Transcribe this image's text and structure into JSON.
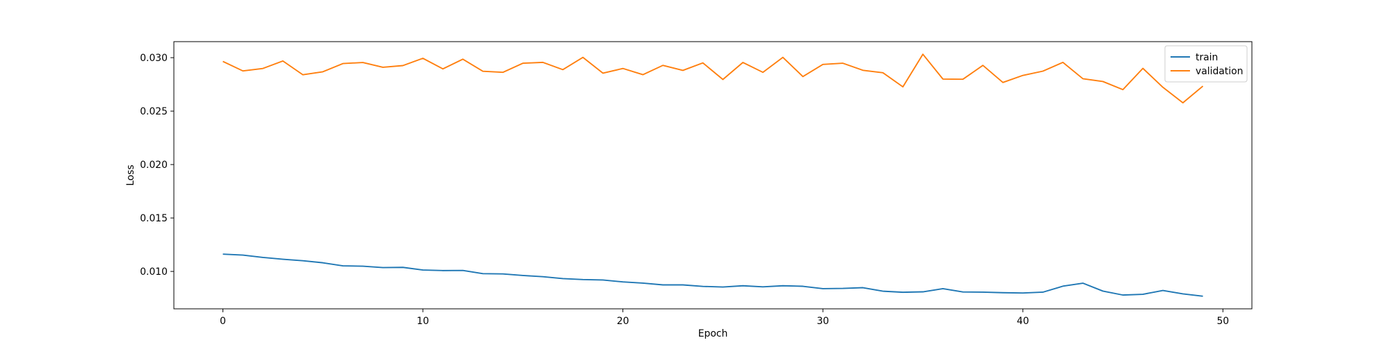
{
  "chart_data": {
    "type": "line",
    "title": "",
    "xlabel": "Epoch",
    "ylabel": "Loss",
    "xlim": [
      -2.45,
      51.45
    ],
    "ylim": [
      0.0065,
      0.0315
    ],
    "xticks": [
      0,
      10,
      20,
      30,
      40,
      50
    ],
    "xtick_labels": [
      "0",
      "10",
      "20",
      "30",
      "40",
      "50"
    ],
    "yticks": [
      0.01,
      0.015,
      0.02,
      0.025,
      0.03
    ],
    "ytick_labels": [
      "0.010",
      "0.015",
      "0.020",
      "0.025",
      "0.030"
    ],
    "grid": false,
    "legend_position": "top-right",
    "x": [
      0,
      1,
      2,
      3,
      4,
      5,
      6,
      7,
      8,
      9,
      10,
      11,
      12,
      13,
      14,
      15,
      16,
      17,
      18,
      19,
      20,
      21,
      22,
      23,
      24,
      25,
      26,
      27,
      28,
      29,
      30,
      31,
      32,
      33,
      34,
      35,
      36,
      37,
      38,
      39,
      40,
      41,
      42,
      43,
      44,
      45,
      46,
      47,
      48,
      49
    ],
    "series": [
      {
        "name": "train",
        "color": "#1f77b4",
        "values": [
          0.01162,
          0.01153,
          0.01131,
          0.01114,
          0.011,
          0.01081,
          0.01052,
          0.01049,
          0.01036,
          0.01038,
          0.01013,
          0.01008,
          0.01009,
          0.00979,
          0.00977,
          0.00962,
          0.00951,
          0.00933,
          0.00924,
          0.0092,
          0.00902,
          0.00891,
          0.00874,
          0.00874,
          0.0086,
          0.00854,
          0.00866,
          0.00856,
          0.00866,
          0.00861,
          0.00839,
          0.00841,
          0.00848,
          0.00815,
          0.00805,
          0.00809,
          0.00839,
          0.00808,
          0.00806,
          0.00801,
          0.00798,
          0.00806,
          0.00862,
          0.0089,
          0.00816,
          0.00779,
          0.00786,
          0.00822,
          0.0079,
          0.00768
        ]
      },
      {
        "name": "validation",
        "color": "#ff7f0e",
        "values": [
          0.02965,
          0.02876,
          0.02899,
          0.02969,
          0.0284,
          0.02868,
          0.02945,
          0.02955,
          0.0291,
          0.02926,
          0.02994,
          0.02895,
          0.02986,
          0.02873,
          0.02863,
          0.02948,
          0.02956,
          0.02888,
          0.03003,
          0.02855,
          0.02899,
          0.02841,
          0.02928,
          0.02881,
          0.02951,
          0.02796,
          0.02955,
          0.02863,
          0.03003,
          0.02823,
          0.02937,
          0.02948,
          0.02882,
          0.02859,
          0.02727,
          0.03032,
          0.028,
          0.02798,
          0.02928,
          0.02768,
          0.02834,
          0.02874,
          0.02956,
          0.02803,
          0.02777,
          0.02701,
          0.029,
          0.02723,
          0.02578,
          0.02734
        ]
      }
    ]
  }
}
